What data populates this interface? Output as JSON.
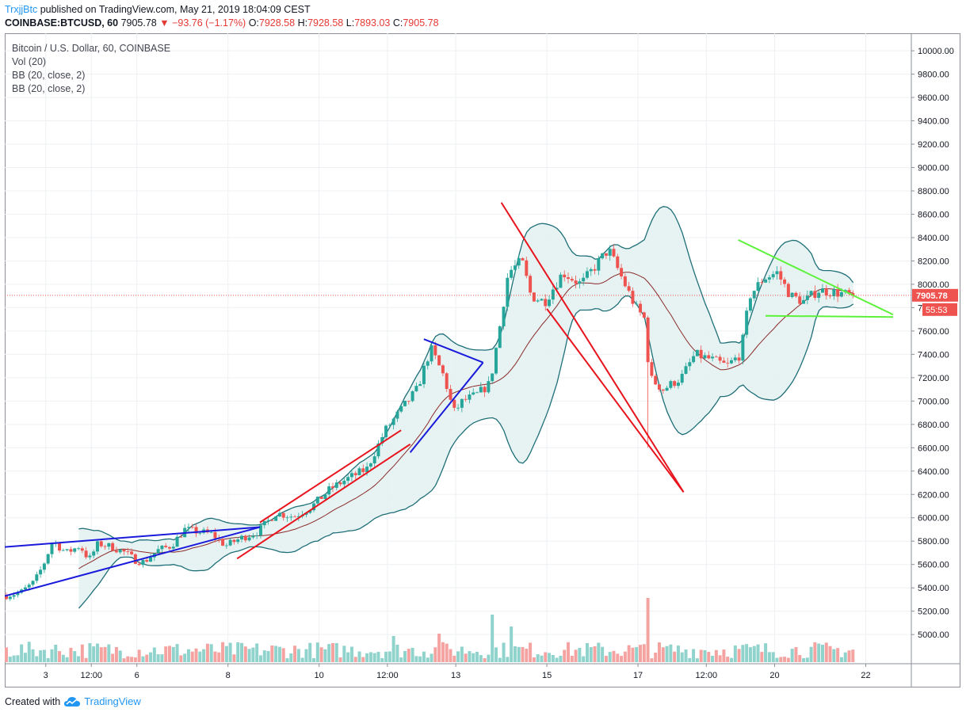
{
  "header": {
    "author": "TrxjjBtc",
    "published": "published on TradingView.com, May 21, 2019 18:04:09 CEST",
    "symbol": "COINBASE:BTCUSD, 60",
    "last": "7905.78",
    "change_arrow": "▼",
    "change": "−93.76 (−1.17%)",
    "o_label": "O:",
    "o": "7928.58",
    "h_label": "H:",
    "h": "7928.58",
    "l_label": "L:",
    "l": "7893.03",
    "c_label": "C:",
    "c": "7905.78"
  },
  "legend": {
    "title": "Bitcoin / U.S. Dollar, 60, COINBASE",
    "vol": "Vol (20)",
    "bb1": "BB (20, close, 2)",
    "bb2": "BB (20, close, 2)"
  },
  "footer": {
    "created": "Created with",
    "brand": "TradingView",
    "logo_icon": "tradingview-cloud-icon"
  },
  "colors": {
    "up": "#26a69a",
    "down": "#ef5350",
    "vol_up": "#8fd3cc",
    "vol_down": "#f4a3a1",
    "bb_band": "#1f6f78",
    "bb_fill": "#e3f2f1",
    "bb_basis": "#8b2a2a",
    "line_blue": "#1a1adb",
    "line_red": "#e8141d",
    "line_green": "#5df23a",
    "price_tag": "#ef5350"
  },
  "chart_data": {
    "type": "candlestick",
    "ylim": [
      4750,
      10150
    ],
    "y_ticks": [
      5000,
      5200,
      5400,
      5600,
      5800,
      6000,
      6200,
      6400,
      6600,
      6800,
      7000,
      7200,
      7400,
      7600,
      7800,
      8000,
      8200,
      8400,
      8600,
      8800,
      9000,
      9200,
      9400,
      9600,
      9800,
      10000
    ],
    "y_tick_labels": [
      "5000.00",
      "5200.00",
      "5400.00",
      "5600.00",
      "5800.00",
      "6000.00",
      "6200.00",
      "6400.00",
      "6600.00",
      "6800.00",
      "7000.00",
      "7200.00",
      "7400.00",
      "7600.00",
      "7800.00",
      "8000.00",
      "8200.00",
      "8400.00",
      "8600.00",
      "8800.00",
      "9000.00",
      "9200.00",
      "9400.00",
      "9600.00",
      "9800.00",
      "10000.00"
    ],
    "x_ticks": [
      {
        "label": "3",
        "t": 1
      },
      {
        "label": "12:00",
        "t": 1.5
      },
      {
        "label": "6",
        "t": 2
      },
      {
        "label": "8",
        "t": 3
      },
      {
        "label": "10",
        "t": 4
      },
      {
        "label": "12:00",
        "t": 4.75
      },
      {
        "label": "13",
        "t": 5.5
      },
      {
        "label": "15",
        "t": 6.5
      },
      {
        "label": "17",
        "t": 7.5
      },
      {
        "label": "12:00",
        "t": 8.25
      },
      {
        "label": "20",
        "t": 9
      },
      {
        "label": "22",
        "t": 10
      }
    ],
    "xlim": [
      0.55,
      10.5
    ],
    "last_price": 7905.78,
    "last_price_label": "7905.78",
    "countdown": "55:53",
    "price_path": [
      [
        0.55,
        5330
      ],
      [
        0.75,
        5360
      ],
      [
        0.9,
        5450
      ],
      [
        1.0,
        5600
      ],
      [
        1.1,
        5800
      ],
      [
        1.25,
        5700
      ],
      [
        1.4,
        5760
      ],
      [
        1.5,
        5640
      ],
      [
        1.6,
        5780
      ],
      [
        1.75,
        5750
      ],
      [
        1.9,
        5700
      ],
      [
        2.0,
        5640
      ],
      [
        2.1,
        5620
      ],
      [
        2.25,
        5720
      ],
      [
        2.4,
        5760
      ],
      [
        2.55,
        5900
      ],
      [
        2.7,
        5880
      ],
      [
        2.85,
        5860
      ],
      [
        3.0,
        5760
      ],
      [
        3.15,
        5820
      ],
      [
        3.35,
        5880
      ],
      [
        3.55,
        6040
      ],
      [
        3.75,
        6010
      ],
      [
        3.95,
        6100
      ],
      [
        4.15,
        6250
      ],
      [
        4.35,
        6340
      ],
      [
        4.55,
        6420
      ],
      [
        4.75,
        6750
      ],
      [
        4.95,
        6950
      ],
      [
        5.1,
        7100
      ],
      [
        5.25,
        7450
      ],
      [
        5.4,
        7200
      ],
      [
        5.5,
        6900
      ],
      [
        5.6,
        7000
      ],
      [
        5.75,
        7050
      ],
      [
        5.9,
        7150
      ],
      [
        6.0,
        7600
      ],
      [
        6.1,
        8100
      ],
      [
        6.25,
        8200
      ],
      [
        6.35,
        7900
      ],
      [
        6.5,
        7850
      ],
      [
        6.7,
        8100
      ],
      [
        6.9,
        8000
      ],
      [
        7.05,
        8150
      ],
      [
        7.2,
        8300
      ],
      [
        7.35,
        8050
      ],
      [
        7.5,
        7800
      ],
      [
        7.6,
        7700
      ],
      [
        7.65,
        7200
      ],
      [
        7.8,
        7100
      ],
      [
        8.0,
        7200
      ],
      [
        8.15,
        7400
      ],
      [
        8.35,
        7350
      ],
      [
        8.5,
        7300
      ],
      [
        8.65,
        7400
      ],
      [
        8.75,
        7900
      ],
      [
        8.9,
        8050
      ],
      [
        9.05,
        8100
      ],
      [
        9.2,
        7900
      ],
      [
        9.35,
        7850
      ],
      [
        9.5,
        7950
      ],
      [
        9.7,
        7930
      ],
      [
        9.85,
        7905.78
      ]
    ],
    "series": [
      {
        "name": "Vol (20)",
        "type": "volume"
      },
      {
        "name": "BB (20, close, 2)",
        "type": "bollinger"
      },
      {
        "name": "BB (20, close, 2)",
        "type": "bollinger"
      }
    ],
    "drawings": [
      {
        "color": "blue",
        "t1": 0.55,
        "p1": 5750,
        "t2": 3.35,
        "p2": 5920
      },
      {
        "color": "blue",
        "t1": 0.55,
        "p1": 5330,
        "t2": 3.35,
        "p2": 5920
      },
      {
        "color": "blue",
        "t1": 5.15,
        "p1": 7530,
        "t2": 5.8,
        "p2": 7330
      },
      {
        "color": "blue",
        "t1": 5.0,
        "p1": 6560,
        "t2": 5.8,
        "p2": 7330
      },
      {
        "color": "red",
        "t1": 3.1,
        "p1": 5650,
        "t2": 5.0,
        "p2": 6630
      },
      {
        "color": "red",
        "t1": 3.35,
        "p1": 5960,
        "t2": 4.9,
        "p2": 6750
      },
      {
        "color": "red",
        "t1": 6.0,
        "p1": 8700,
        "t2": 8.0,
        "p2": 6220
      },
      {
        "color": "red",
        "t1": 6.5,
        "p1": 7790,
        "t2": 8.0,
        "p2": 6220
      },
      {
        "color": "green",
        "t1": 8.6,
        "p1": 8380,
        "t2": 10.3,
        "p2": 7740
      },
      {
        "color": "green",
        "t1": 8.9,
        "p1": 7730,
        "t2": 10.3,
        "p2": 7720
      }
    ],
    "volume_spikes": [
      {
        "t": 5.9,
        "v": 1.0
      },
      {
        "t": 7.6,
        "v": 1.35
      },
      {
        "t": 6.1,
        "v": 0.75
      },
      {
        "t": 5.3,
        "v": 0.6
      },
      {
        "t": 4.8,
        "v": 0.55
      }
    ]
  }
}
